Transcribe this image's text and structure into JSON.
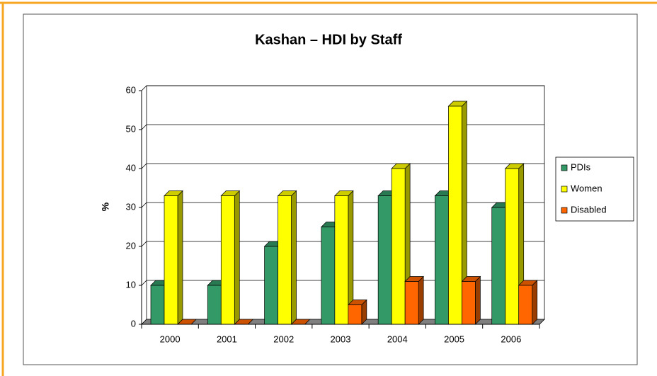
{
  "chart_data": {
    "type": "bar",
    "title": "Kashan – HDI by Staff",
    "y_label": "%",
    "categories": [
      "2000",
      "2001",
      "2002",
      "2003",
      "2004",
      "2005",
      "2006"
    ],
    "series": [
      {
        "name": "PDIs",
        "color": "#339966",
        "values": [
          10,
          10,
          20,
          25,
          33,
          33,
          30
        ]
      },
      {
        "name": "Women",
        "color": "#ffff00",
        "values": [
          33,
          33,
          33,
          33,
          40,
          56,
          40
        ]
      },
      {
        "name": "Disabled",
        "color": "#ff6600",
        "values": [
          0,
          0,
          0,
          5,
          11,
          11,
          10
        ]
      }
    ],
    "ylim": [
      0,
      60
    ],
    "yticks": [
      0,
      10,
      20,
      30,
      40,
      50,
      60
    ],
    "grid": true,
    "legend": "right"
  }
}
